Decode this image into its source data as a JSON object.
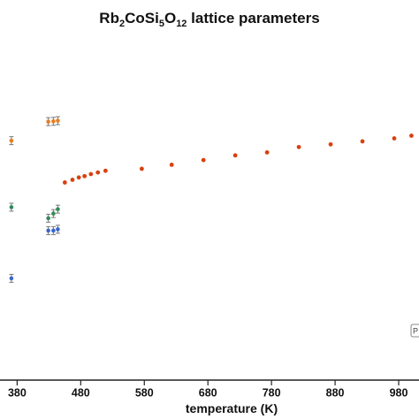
{
  "chart_data": {
    "type": "scatter",
    "title": {
      "parts": [
        {
          "text": "Rb",
          "sub": false
        },
        {
          "text": "2",
          "sub": true
        },
        {
          "text": "CoSi",
          "sub": false
        },
        {
          "text": "5",
          "sub": true
        },
        {
          "text": "O",
          "sub": false
        },
        {
          "text": "12",
          "sub": true
        },
        {
          "text": " lattice parameters",
          "sub": false
        }
      ]
    },
    "xlabel": "temperature (K)",
    "ylabel": "",
    "xlim": [
      360,
      1005
    ],
    "ylim": [
      0,
      1
    ],
    "xticks": [
      380,
      480,
      580,
      680,
      780,
      880,
      980
    ],
    "xtick_labels": [
      "380",
      "480",
      "580",
      "680",
      "780",
      "880",
      "980"
    ],
    "grid": false,
    "legend": "right (partially visible)",
    "legend_text": "P",
    "series": [
      {
        "color": "#e67e22",
        "marker": "circle",
        "error_bars": true,
        "points": [
          {
            "x": 371,
            "y": 0.69
          },
          {
            "x": 429,
            "y": 0.747
          },
          {
            "x": 437,
            "y": 0.748
          },
          {
            "x": 444,
            "y": 0.75
          }
        ]
      },
      {
        "color": "#2e8b57",
        "marker": "circle",
        "error_bars": true,
        "points": [
          {
            "x": 371,
            "y": 0.491
          },
          {
            "x": 429,
            "y": 0.458
          },
          {
            "x": 437,
            "y": 0.472
          },
          {
            "x": 444,
            "y": 0.485
          }
        ]
      },
      {
        "color": "#3a66c9",
        "marker": "circle",
        "error_bars": true,
        "points": [
          {
            "x": 371,
            "y": 0.278
          },
          {
            "x": 429,
            "y": 0.421
          },
          {
            "x": 437,
            "y": 0.421
          },
          {
            "x": 444,
            "y": 0.425
          }
        ]
      },
      {
        "color": "#d9400f",
        "marker": "circle",
        "error_bars": false,
        "points": [
          {
            "x": 455,
            "y": 0.565
          },
          {
            "x": 467,
            "y": 0.573
          },
          {
            "x": 477,
            "y": 0.58
          },
          {
            "x": 486,
            "y": 0.584
          },
          {
            "x": 496,
            "y": 0.59
          },
          {
            "x": 507,
            "y": 0.595
          },
          {
            "x": 519,
            "y": 0.6
          },
          {
            "x": 576,
            "y": 0.606
          },
          {
            "x": 623,
            "y": 0.618
          },
          {
            "x": 673,
            "y": 0.632
          },
          {
            "x": 723,
            "y": 0.646
          },
          {
            "x": 773,
            "y": 0.655
          },
          {
            "x": 823,
            "y": 0.671
          },
          {
            "x": 873,
            "y": 0.679
          },
          {
            "x": 923,
            "y": 0.688
          },
          {
            "x": 973,
            "y": 0.697
          },
          {
            "x": 1000,
            "y": 0.705
          }
        ]
      }
    ]
  }
}
